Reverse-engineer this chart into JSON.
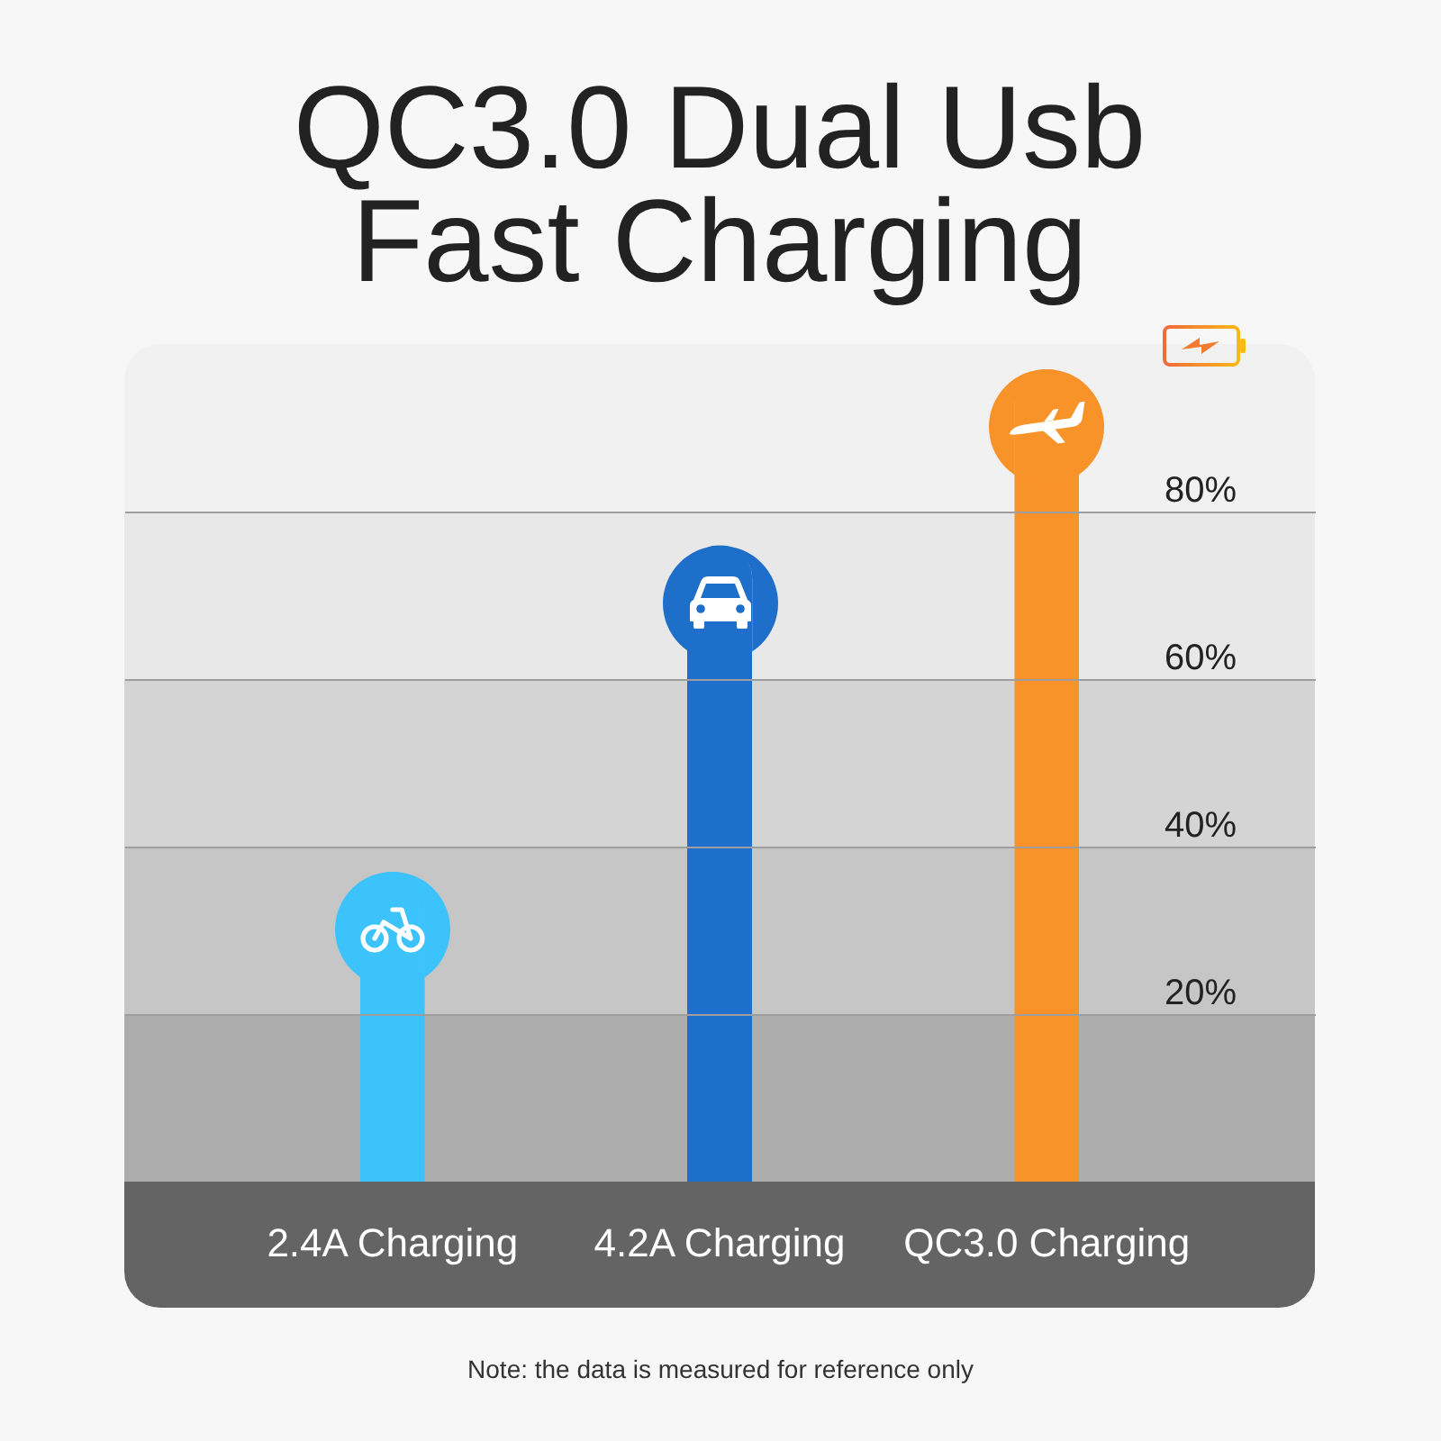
{
  "chart_data": {
    "type": "bar",
    "title": "QC3.0 Dual Usb Fast Charging",
    "categories": [
      "2.4A Charging",
      "4.2A Charging",
      "QC3.0 Charging"
    ],
    "values": [
      37,
      76,
      97
    ],
    "colors": [
      "#3dc3fc",
      "#1d6fc9",
      "#f8932a"
    ],
    "ylim": [
      0,
      100
    ],
    "yticks": [
      {
        "value": 20,
        "label": "20%"
      },
      {
        "value": 40,
        "label": "40%"
      },
      {
        "value": 60,
        "label": "60%"
      },
      {
        "value": 80,
        "label": "80%"
      }
    ],
    "grid": "y",
    "bands": [
      {
        "axis": "y",
        "from": 0,
        "to": 20,
        "color": "#adadad"
      },
      {
        "axis": "y",
        "from": 20,
        "to": 40,
        "color": "#c6c6c6"
      },
      {
        "axis": "y",
        "from": 40,
        "to": 60,
        "color": "#d4d4d4"
      },
      {
        "axis": "y",
        "from": 60,
        "to": 80,
        "color": "#e8e8e8"
      },
      {
        "axis": "y",
        "from": 80,
        "to": 100,
        "color": "#f1f1f1"
      }
    ],
    "annotations": [
      "Note: the data is measured for reference only"
    ]
  }
}
